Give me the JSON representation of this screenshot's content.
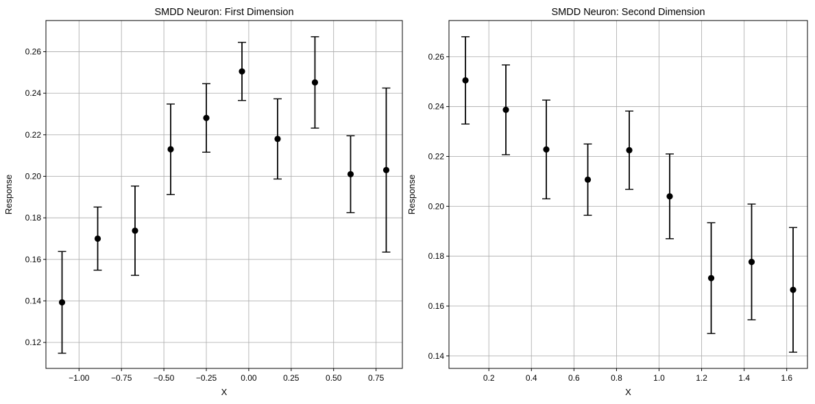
{
  "chart_data": [
    {
      "type": "scatter",
      "title": "SMDD Neuron: First Dimension",
      "xlabel": "X",
      "ylabel": "Response",
      "xlim": [
        -1.195,
        0.905
      ],
      "ylim": [
        0.1075,
        0.275
      ],
      "grid": true,
      "xticks": [
        -1.0,
        -0.75,
        -0.5,
        -0.25,
        0.0,
        0.25,
        0.5,
        0.75
      ],
      "xtick_labels": [
        "−1.00",
        "−0.75",
        "−0.50",
        "−0.25",
        "0.00",
        "0.25",
        "0.50",
        "0.75"
      ],
      "yticks": [
        0.12,
        0.14,
        0.16,
        0.18,
        0.2,
        0.22,
        0.24,
        0.26
      ],
      "ytick_labels": [
        "0.12",
        "0.14",
        "0.16",
        "0.18",
        "0.20",
        "0.22",
        "0.24",
        "0.26"
      ],
      "series": [
        {
          "x": [
            -1.1,
            -0.89,
            -0.67,
            -0.46,
            -0.25,
            -0.04,
            0.17,
            0.39,
            0.6,
            0.81
          ],
          "y": [
            0.1393,
            0.17,
            0.1738,
            0.213,
            0.2281,
            0.2505,
            0.218,
            0.2452,
            0.201,
            0.203
          ],
          "yerr": [
            0.0245,
            0.0152,
            0.0215,
            0.0218,
            0.0165,
            0.014,
            0.0193,
            0.022,
            0.0185,
            0.0395
          ],
          "color": "#000000"
        }
      ]
    },
    {
      "type": "scatter",
      "title": "SMDD Neuron: Second Dimension",
      "xlabel": "X",
      "ylabel": "Response",
      "xlim": [
        0.0125,
        1.6975
      ],
      "ylim": [
        0.135,
        0.2745
      ],
      "grid": true,
      "xticks": [
        0.2,
        0.4,
        0.6,
        0.8,
        1.0,
        1.2,
        1.4,
        1.6
      ],
      "xtick_labels": [
        "0.2",
        "0.4",
        "0.6",
        "0.8",
        "1.0",
        "1.2",
        "1.4",
        "1.6"
      ],
      "yticks": [
        0.14,
        0.16,
        0.18,
        0.2,
        0.22,
        0.24,
        0.26
      ],
      "ytick_labels": [
        "0.14",
        "0.16",
        "0.18",
        "0.20",
        "0.22",
        "0.24",
        "0.26"
      ],
      "series": [
        {
          "x": [
            0.09,
            0.28,
            0.47,
            0.665,
            0.86,
            1.05,
            1.245,
            1.435,
            1.63
          ],
          "y": [
            0.2505,
            0.2387,
            0.2228,
            0.2107,
            0.2225,
            0.204,
            0.1712,
            0.1777,
            0.1665
          ],
          "yerr": [
            0.0175,
            0.018,
            0.0198,
            0.0143,
            0.0157,
            0.017,
            0.0222,
            0.0232,
            0.025
          ],
          "color": "#000000"
        }
      ]
    }
  ]
}
